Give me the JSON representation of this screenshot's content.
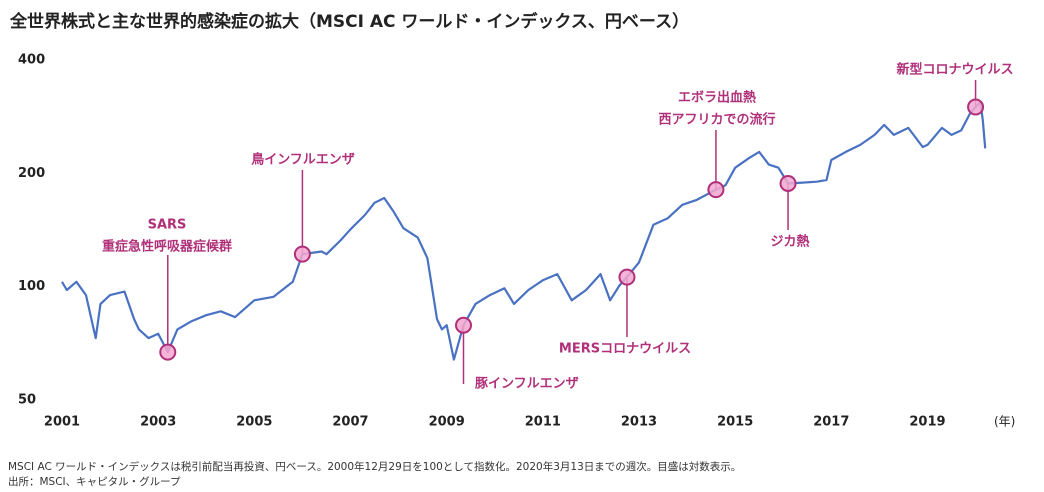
{
  "chart_data": {
    "type": "line",
    "title": "全世界株式と主な世界的感染症の拡大（MSCI AC ワールド・インデックス、円ベース）",
    "x_unit": "(年)",
    "yscale": "log",
    "xlim": [
      2001,
      2020.3
    ],
    "xticks": [
      2001,
      2003,
      2005,
      2007,
      2009,
      2011,
      2013,
      2015,
      2017,
      2019
    ],
    "ylim": [
      50,
      400
    ],
    "yticks": [
      50,
      100,
      200,
      400
    ],
    "series": [
      {
        "name": "MSCI AC ワールド・インデックス",
        "color": "#4a72c2",
        "x": [
          2001.0,
          2001.1,
          2001.3,
          2001.5,
          2001.7,
          2001.8,
          2002.0,
          2002.3,
          2002.5,
          2002.6,
          2002.8,
          2003.0,
          2003.2,
          2003.4,
          2003.7,
          2004.0,
          2004.3,
          2004.6,
          2005.0,
          2005.4,
          2005.8,
          2006.0,
          2006.4,
          2006.5,
          2006.8,
          2007.0,
          2007.3,
          2007.5,
          2007.7,
          2007.9,
          2008.1,
          2008.4,
          2008.6,
          2008.8,
          2008.9,
          2009.0,
          2009.15,
          2009.35,
          2009.6,
          2009.9,
          2010.2,
          2010.4,
          2010.7,
          2011.0,
          2011.3,
          2011.6,
          2011.9,
          2012.2,
          2012.4,
          2012.6,
          2012.75,
          2013.0,
          2013.3,
          2013.6,
          2013.9,
          2014.2,
          2014.6,
          2014.8,
          2015.0,
          2015.3,
          2015.5,
          2015.7,
          2015.9,
          2016.1,
          2016.4,
          2016.7,
          2016.9,
          2017.0,
          2017.3,
          2017.6,
          2017.9,
          2018.1,
          2018.3,
          2018.6,
          2018.9,
          2019.0,
          2019.3,
          2019.5,
          2019.7,
          2019.9,
          2020.0,
          2020.1,
          2020.15,
          2020.2
        ],
        "values": [
          103,
          98,
          103,
          95,
          73,
          90,
          95,
          97,
          82,
          77,
          73,
          75,
          67,
          77,
          81,
          84,
          86,
          83,
          92,
          94,
          103,
          122,
          124,
          122,
          133,
          142,
          155,
          167,
          172,
          158,
          143,
          135,
          119,
          82,
          77,
          79,
          64,
          79,
          90,
          95,
          99,
          90,
          98,
          104,
          108,
          92,
          98,
          108,
          92,
          101,
          106,
          116,
          146,
          152,
          165,
          170,
          181,
          186,
          207,
          220,
          228,
          211,
          207,
          188,
          189,
          190,
          192,
          217,
          228,
          238,
          253,
          269,
          253,
          264,
          235,
          238,
          264,
          253,
          260,
          291,
          300,
          309,
          277,
          233
        ]
      }
    ],
    "annotations": [
      {
        "text": [
          "SARS",
          "重症急性呼吸器症候群"
        ],
        "x": 2003.2,
        "y": 67
      },
      {
        "text": [
          "鳥インフルエンザ"
        ],
        "x": 2006.0,
        "y": 122
      },
      {
        "text": [
          "豚インフルエンザ"
        ],
        "x": 2009.35,
        "y": 79
      },
      {
        "text": [
          "MERSコロナウイルス"
        ],
        "x": 2012.75,
        "y": 106
      },
      {
        "text": [
          "エボラ出血熱",
          "西アフリカでの流行"
        ],
        "x": 2014.6,
        "y": 181
      },
      {
        "text": [
          "ジカ熱"
        ],
        "x": 2016.1,
        "y": 188
      },
      {
        "text": [
          "新型コロナウイルス"
        ],
        "x": 2020.0,
        "y": 300
      }
    ],
    "notes": [
      "MSCI AC ワールド・インデックスは税引前配当再投資、円ベース。2000年12月29日を100として指数化。2020年3月13日までの週次。目盛は対数表示。",
      "出所：MSCI、キャピタル・グループ"
    ]
  }
}
